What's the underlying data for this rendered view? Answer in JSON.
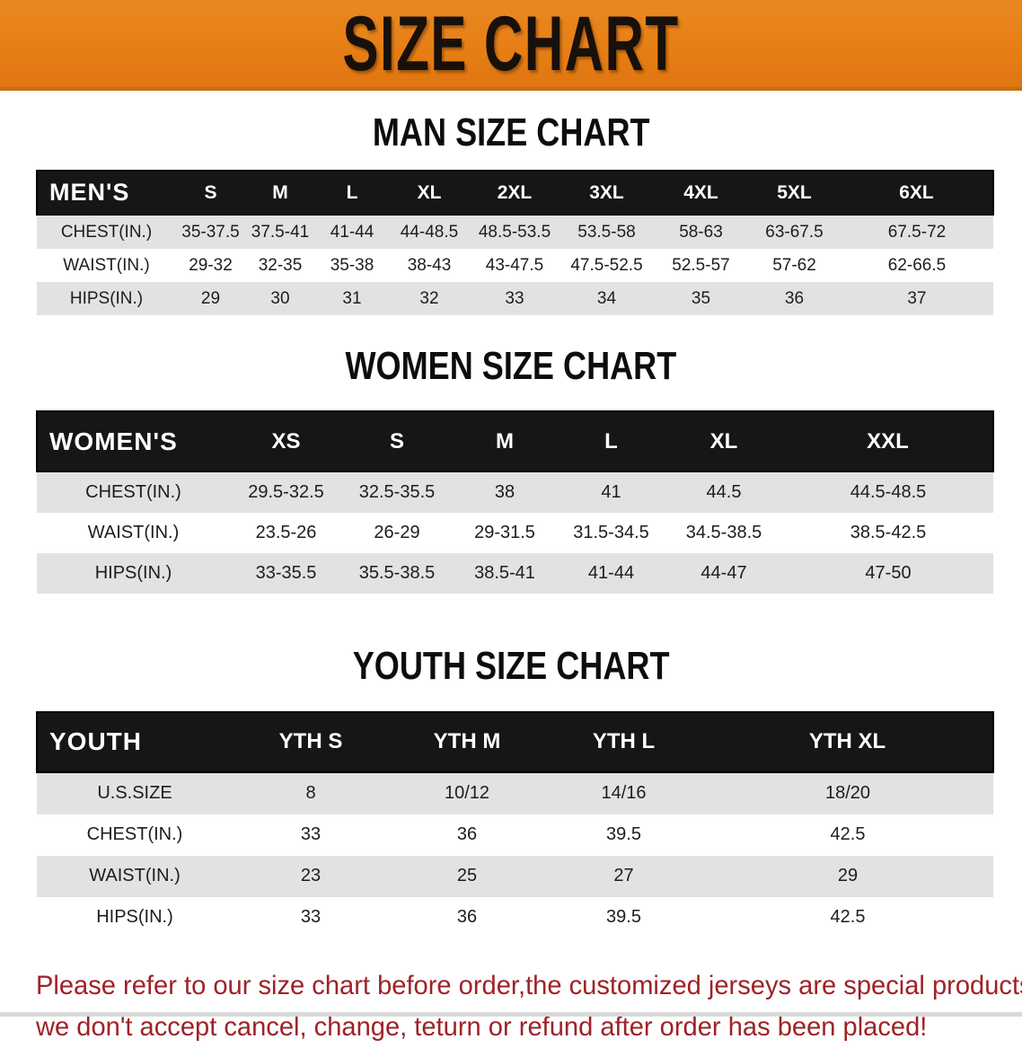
{
  "banner": {
    "title": "SIZE CHART"
  },
  "colors": {
    "banner_bg": "#e67e15",
    "header_bar_bg": "#161616",
    "row_shade_bg": "#e2e2e2",
    "footer_text": "#9e2227"
  },
  "sections": [
    {
      "heading": "MAN SIZE CHART",
      "header_label": "MEN'S",
      "columns": [
        "S",
        "M",
        "L",
        "XL",
        "2XL",
        "3XL",
        "4XL",
        "5XL",
        "6XL"
      ],
      "rows": [
        {
          "label": "CHEST(IN.)",
          "values": [
            "35-37.5",
            "37.5-41",
            "41-44",
            "44-48.5",
            "48.5-53.5",
            "53.5-58",
            "58-63",
            "63-67.5",
            "67.5-72"
          ]
        },
        {
          "label": "WAIST(IN.)",
          "values": [
            "29-32",
            "32-35",
            "35-38",
            "38-43",
            "43-47.5",
            "47.5-52.5",
            "52.5-57",
            "57-62",
            "62-66.5"
          ]
        },
        {
          "label": "HIPS(IN.)",
          "values": [
            "29",
            "30",
            "31",
            "32",
            "33",
            "34",
            "35",
            "36",
            "37"
          ]
        }
      ]
    },
    {
      "heading": "WOMEN SIZE CHART",
      "header_label": "WOMEN'S",
      "columns": [
        "XS",
        "S",
        "M",
        "L",
        "XL",
        "XXL"
      ],
      "rows": [
        {
          "label": "CHEST(IN.)",
          "values": [
            "29.5-32.5",
            "32.5-35.5",
            "38",
            "41",
            "44.5",
            "44.5-48.5"
          ]
        },
        {
          "label": "WAIST(IN.)",
          "values": [
            "23.5-26",
            "26-29",
            "29-31.5",
            "31.5-34.5",
            "34.5-38.5",
            "38.5-42.5"
          ]
        },
        {
          "label": "HIPS(IN.)",
          "values": [
            "33-35.5",
            "35.5-38.5",
            "38.5-41",
            "41-44",
            "44-47",
            "47-50"
          ]
        }
      ]
    },
    {
      "heading": "YOUTH SIZE CHART",
      "header_label": "YOUTH",
      "columns": [
        "YTH S",
        "YTH M",
        "YTH L",
        "YTH XL"
      ],
      "rows": [
        {
          "label": "U.S.SIZE",
          "values": [
            "8",
            "10/12",
            "14/16",
            "18/20"
          ]
        },
        {
          "label": "CHEST(IN.)",
          "values": [
            "33",
            "36",
            "39.5",
            "42.5"
          ]
        },
        {
          "label": "WAIST(IN.)",
          "values": [
            "23",
            "25",
            "27",
            "29"
          ]
        },
        {
          "label": "HIPS(IN.)",
          "values": [
            "33",
            "36",
            "39.5",
            "42.5"
          ]
        }
      ]
    }
  ],
  "footer": {
    "lines": [
      "Please refer to our size chart before order,the customized jerseys are special products,",
      "we don't accept cancel, change, teturn or refund after order has been placed!"
    ]
  }
}
